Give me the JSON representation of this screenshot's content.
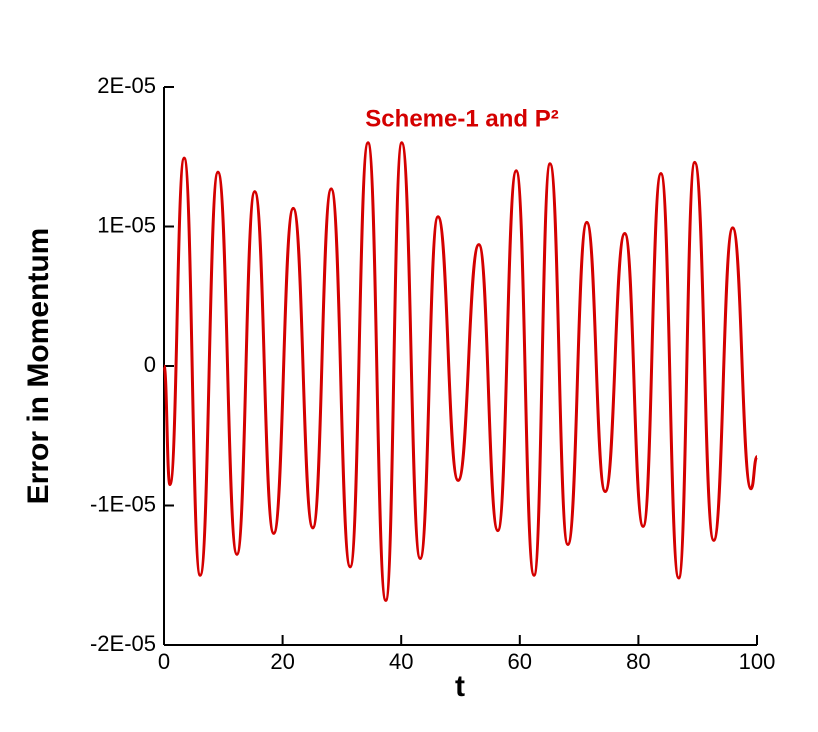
{
  "chart_data": {
    "type": "line",
    "annotation": "Scheme-1 and P²",
    "x_label": "t",
    "y_label": "Error in Momentum",
    "xlim": [
      0,
      100
    ],
    "xticks": [
      0,
      20,
      40,
      60,
      80,
      100
    ],
    "ylim": [
      -2e-05,
      2e-05
    ],
    "yticks": [
      {
        "value": -2e-05,
        "label": "-2E-05"
      },
      {
        "value": -1e-05,
        "label": "-1E-05"
      },
      {
        "value": 0,
        "label": "0"
      },
      {
        "value": 1e-05,
        "label": "1E-05"
      },
      {
        "value": 2e-05,
        "label": "2E-05"
      }
    ],
    "color": "#d40000",
    "x": [
      0,
      1.0,
      3.4,
      6.1,
      9.1,
      12.3,
      15.3,
      18.5,
      21.8,
      25.1,
      28.2,
      31.4,
      34.4,
      37.4,
      40.1,
      43.2,
      46.2,
      49.6,
      53.1,
      56.3,
      59.4,
      62.4,
      65.1,
      68.1,
      71.3,
      74.4,
      77.7,
      80.8,
      83.8,
      86.8,
      89.5,
      92.7,
      95.9,
      99.0,
      100
    ],
    "values": [
      0,
      -8.5e-06,
      1.49e-05,
      -1.5e-05,
      1.39e-05,
      -1.35e-05,
      1.25e-05,
      -1.2e-05,
      1.13e-05,
      -1.16e-05,
      1.27e-05,
      -1.44e-05,
      1.6e-05,
      -1.68e-05,
      1.6e-05,
      -1.38e-05,
      1.07e-05,
      -8.2e-06,
      8.7e-06,
      -1.18e-05,
      1.4e-05,
      -1.5e-05,
      1.45e-05,
      -1.28e-05,
      1.03e-05,
      -9e-06,
      9.5e-06,
      -1.15e-05,
      1.38e-05,
      -1.52e-05,
      1.46e-05,
      -1.25e-05,
      9.9e-06,
      -8.8e-06,
      -6.5e-06
    ]
  }
}
